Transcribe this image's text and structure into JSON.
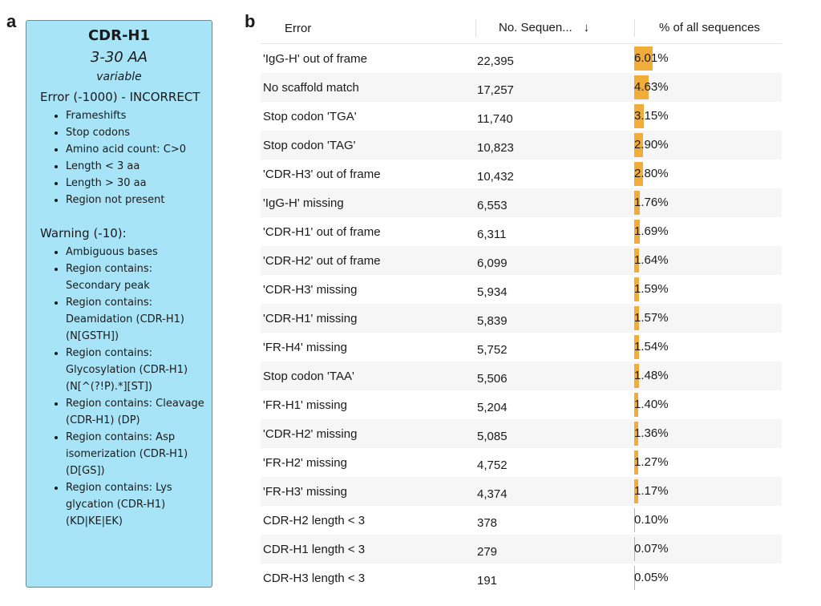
{
  "panel_letters": {
    "a": "a",
    "b": "b"
  },
  "card": {
    "title": "CDR-H1",
    "range": "3-30 AA",
    "type": "variable",
    "error_heading": "Error (-1000) - INCORRECT",
    "errors": [
      "Frameshifts",
      "Stop codons",
      "Amino acid count: C>0",
      "Length < 3 aa",
      "Length > 30 aa",
      "Region not present"
    ],
    "warning_heading": "Warning (-10):",
    "warnings": [
      "Ambiguous bases",
      "Region contains: Secondary peak",
      "Region contains: Deamidation (CDR-H1) (N[GSTH])",
      "Region contains: Glycosylation (CDR-H1) (N[^(?!P).*][ST])",
      "Region contains: Cleavage (CDR-H1) (DP)",
      "Region contains: Asp isomerization (CDR-H1) (D[GS])",
      "Region contains: Lys glycation (CDR-H1) (KD|KE|EK)"
    ]
  },
  "table": {
    "headers": {
      "error": "Error",
      "count": "No. Sequen...",
      "sort_icon": "↓",
      "pct": "% of all sequences"
    },
    "bar_color": "#f2ac3a",
    "rows": [
      {
        "error": "'IgG-H' out of frame",
        "count": "22,395",
        "pct": "6.01%",
        "value": 6.01
      },
      {
        "error": "No scaffold match",
        "count": "17,257",
        "pct": "4.63%",
        "value": 4.63
      },
      {
        "error": "Stop codon 'TGA'",
        "count": "11,740",
        "pct": "3.15%",
        "value": 3.15
      },
      {
        "error": "Stop codon 'TAG'",
        "count": "10,823",
        "pct": "2.90%",
        "value": 2.9
      },
      {
        "error": "'CDR-H3' out of frame",
        "count": "10,432",
        "pct": "2.80%",
        "value": 2.8
      },
      {
        "error": "'IgG-H' missing",
        "count": "6,553",
        "pct": "1.76%",
        "value": 1.76
      },
      {
        "error": "'CDR-H1' out of frame",
        "count": "6,311",
        "pct": "1.69%",
        "value": 1.69
      },
      {
        "error": "'CDR-H2' out of frame",
        "count": "6,099",
        "pct": "1.64%",
        "value": 1.64
      },
      {
        "error": "'CDR-H3' missing",
        "count": "5,934",
        "pct": "1.59%",
        "value": 1.59
      },
      {
        "error": "'CDR-H1' missing",
        "count": "5,839",
        "pct": "1.57%",
        "value": 1.57
      },
      {
        "error": "'FR-H4' missing",
        "count": "5,752",
        "pct": "1.54%",
        "value": 1.54
      },
      {
        "error": "Stop codon 'TAA'",
        "count": "5,506",
        "pct": "1.48%",
        "value": 1.48
      },
      {
        "error": "'FR-H1' missing",
        "count": "5,204",
        "pct": "1.40%",
        "value": 1.4
      },
      {
        "error": "'CDR-H2' missing",
        "count": "5,085",
        "pct": "1.36%",
        "value": 1.36
      },
      {
        "error": "'FR-H2' missing",
        "count": "4,752",
        "pct": "1.27%",
        "value": 1.27
      },
      {
        "error": "'FR-H3' missing",
        "count": "4,374",
        "pct": "1.17%",
        "value": 1.17
      },
      {
        "error": "CDR-H2 length < 3",
        "count": "378",
        "pct": "0.10%",
        "value": 0.1
      },
      {
        "error": "CDR-H1 length < 3",
        "count": "279",
        "pct": "0.07%",
        "value": 0.07
      },
      {
        "error": "CDR-H3 length < 3",
        "count": "191",
        "pct": "0.05%",
        "value": 0.05
      }
    ]
  }
}
